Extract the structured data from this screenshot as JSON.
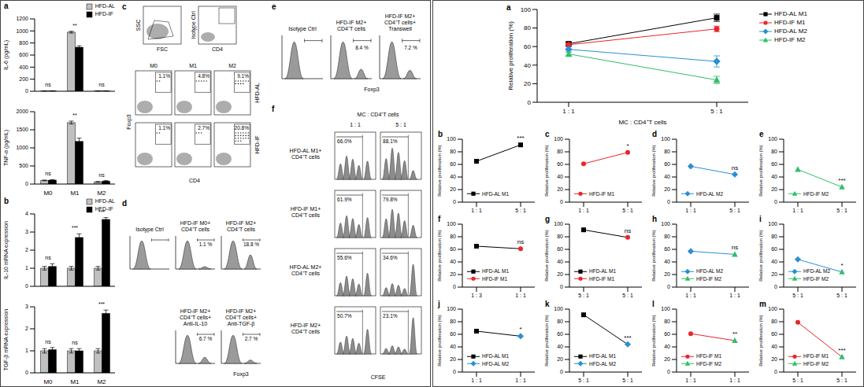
{
  "chart_data": [
    {
      "title": "a",
      "type": "bar",
      "ylabel": "IL-6 (pg/mL)",
      "categories": [
        "M0",
        "M1",
        "M2"
      ],
      "series": [
        {
          "name": "HFD-AL",
          "color": "#c0c0c0",
          "values": [
            5,
            980,
            5
          ],
          "errors": [
            2,
            15,
            2
          ]
        },
        {
          "name": "HFD-IF",
          "color": "#000000",
          "values": [
            5,
            730,
            5
          ],
          "errors": [
            2,
            25,
            2
          ]
        }
      ],
      "significance": [
        "ns",
        "**",
        "ns"
      ],
      "ylim": [
        0,
        1200
      ],
      "yticks": [
        0,
        200,
        400,
        600,
        800,
        1000,
        1200
      ],
      "legend": "top-right",
      "tick_labels": "y"
    },
    {
      "type": "bar",
      "ylabel": "TNF-α (pg/mL)",
      "categories": [
        "M0",
        "M1",
        "M2"
      ],
      "series": [
        {
          "name": "HFD-AL",
          "color": "#c0c0c0",
          "values": [
            100,
            1700,
            60
          ],
          "errors": [
            10,
            40,
            10
          ]
        },
        {
          "name": "HFD-IF",
          "color": "#000000",
          "values": [
            110,
            1180,
            80
          ],
          "errors": [
            10,
            90,
            15
          ]
        }
      ],
      "significance": [
        "ns",
        "**",
        "ns"
      ],
      "ylim": [
        0,
        2000
      ],
      "yticks": [
        0,
        500,
        1000,
        1500,
        2000
      ],
      "legend": "none"
    },
    {
      "title": "b",
      "type": "bar",
      "ylabel": "IL-10 mRNA expression",
      "categories": [
        "M0",
        "M1",
        "M2"
      ],
      "series": [
        {
          "name": "HFD-AL",
          "color": "#c0c0c0",
          "values": [
            1,
            1,
            1
          ],
          "errors": [
            0.1,
            0.1,
            0.1
          ]
        },
        {
          "name": "HFD-IF",
          "color": "#000000",
          "values": [
            1.1,
            2.7,
            3.7
          ],
          "errors": [
            0.15,
            0.2,
            0.1
          ]
        }
      ],
      "significance": [
        "ns",
        "***",
        "***"
      ],
      "ylim": [
        0,
        4
      ],
      "yticks": [
        0,
        1,
        2,
        3,
        4
      ],
      "legend": "top-right",
      "tick_labels": "y"
    },
    {
      "type": "bar",
      "ylabel": "TGF-β mRNA expression",
      "categories": [
        "M0",
        "M1",
        "M2"
      ],
      "series": [
        {
          "name": "HFD-AL",
          "color": "#c0c0c0",
          "values": [
            1,
            1,
            1
          ],
          "errors": [
            0.1,
            0.1,
            0.1
          ]
        },
        {
          "name": "HFD-IF",
          "color": "#000000",
          "values": [
            1.05,
            1,
            2.7
          ],
          "errors": [
            0.1,
            0.1,
            0.15
          ]
        }
      ],
      "significance": [
        "ns",
        "ns",
        "***"
      ],
      "ylim": [
        0,
        3
      ],
      "yticks": [
        0,
        1,
        2,
        3
      ],
      "legend": "none"
    },
    {
      "title": "c",
      "type": "dot_plot",
      "x_label": "CD4",
      "y_label": "Foxp3",
      "gating": {
        "x_label": "FSC",
        "y_label": "SSC"
      },
      "isotype": {
        "label": "Isotype Ctrl",
        "x_label": "CD4"
      },
      "columns": [
        "M0",
        "M1",
        "M2"
      ],
      "rows": [
        {
          "name": "HFD-AL",
          "values": [
            1.1,
            4.8,
            9.1
          ],
          "value_labels": [
            "1.1%",
            "4.8%",
            "9.1%"
          ]
        },
        {
          "name": "HFD-IF",
          "values": [
            1.1,
            2.7,
            20.8
          ],
          "value_labels": [
            "1.1%",
            "2.7%",
            "20.8%"
          ]
        }
      ]
    },
    {
      "title": "d",
      "type": "histogram",
      "x_label": "Foxp3",
      "panels": [
        {
          "label": [
            "Isotype Ctrl"
          ]
        },
        {
          "label": [
            "HFD-IF M0+",
            "CD4⁺T cells"
          ],
          "value": 1.1,
          "value_label": "1.1 %"
        },
        {
          "label": [
            "HFD-IF M2+",
            "CD4⁺T cells"
          ],
          "value": 18.8,
          "value_label": "18.8 %"
        },
        {
          "label": [
            "HFD-IF M2+",
            "CD4⁺T cells+",
            "Anti-IL-10"
          ],
          "value": 6.7,
          "value_label": "6.7 %"
        },
        {
          "label": [
            "HFD-IF M2+",
            "CD4⁺T cells+",
            "Anti-TGF-β"
          ],
          "value": 2.7,
          "value_label": "2.7 %"
        }
      ]
    },
    {
      "title": "e",
      "type": "histogram",
      "x_label": "Foxp3",
      "panels": [
        {
          "label": [
            "Isotype Ctrl"
          ]
        },
        {
          "label": [
            "HFD-IF M2+",
            "CD4⁺T cells"
          ],
          "value": 8.4,
          "value_label": "8.4 %"
        },
        {
          "label": [
            "HFD-IF M2+",
            "CD4⁺T cells+",
            "Transwell"
          ],
          "value": 7.2,
          "value_label": "7.2 %"
        }
      ]
    },
    {
      "title": "f",
      "type": "histogram",
      "header": "MC : CD4⁺T cells",
      "columns": [
        "1 : 1",
        "5 : 1"
      ],
      "x_label": "CFSE",
      "rows": [
        {
          "label": [
            "HFD-AL M1+",
            "CD4⁺T cells"
          ],
          "values": [
            66.0,
            88.1
          ],
          "value_labels": [
            "66.0%",
            "88.1%"
          ]
        },
        {
          "label": [
            "HFD-IF M1+",
            "CD4⁺T cells"
          ],
          "values": [
            61.9,
            79.8
          ],
          "value_labels": [
            "61.9%",
            "79.8%"
          ]
        },
        {
          "label": [
            "HFD-AL M2+",
            "CD4⁺T cells"
          ],
          "values": [
            55.6,
            34.6
          ],
          "value_labels": [
            "55.6%",
            "34.6%"
          ]
        },
        {
          "label": [
            "HFD-IF M2+",
            "CD4⁺T cells"
          ],
          "values": [
            50.7,
            23.1
          ],
          "value_labels": [
            "50.7%",
            "23.1%"
          ]
        }
      ]
    },
    {
      "title": "a",
      "type": "line",
      "xlabel": "MC : CD4⁺T cells",
      "ylabel": "Relative proliferation (%)",
      "categories": [
        "1 : 1",
        "5 : 1"
      ],
      "series": [
        {
          "name": "HFD-AL M1",
          "color": "#000000",
          "marker": "square",
          "values": [
            63,
            91
          ],
          "errors": [
            2,
            4
          ]
        },
        {
          "name": "HFD-IF M1",
          "color": "#e8262b",
          "marker": "circle",
          "values": [
            62,
            79
          ],
          "errors": [
            2,
            3
          ]
        },
        {
          "name": "HFD-AL M2",
          "color": "#2a8fd4",
          "marker": "diamond",
          "values": [
            57,
            44
          ],
          "errors": [
            3,
            6
          ]
        },
        {
          "name": "HFD-IF M2",
          "color": "#2fbf6a",
          "marker": "triangle",
          "values": [
            52,
            24
          ],
          "errors": [
            2,
            4
          ]
        }
      ],
      "ylim": [
        0,
        100
      ],
      "yticks": [
        0,
        20,
        40,
        60,
        80,
        100
      ],
      "legend": "right"
    },
    {
      "title": "b",
      "type": "line",
      "ylabel": "Relative proliferation (%)",
      "categories": [
        "1 : 1",
        "5 : 1"
      ],
      "series": [
        {
          "name": "HFD-AL M1",
          "color": "#000000",
          "marker": "square",
          "values": [
            65,
            91
          ]
        }
      ],
      "significance": "***",
      "ylim": [
        0,
        100
      ],
      "yticks": [
        0,
        20,
        40,
        60,
        80,
        100
      ],
      "legend": "bottom-left"
    },
    {
      "title": "c",
      "type": "line",
      "ylabel": "Relative proliferation (%)",
      "categories": [
        "1 : 1",
        "5 : 1"
      ],
      "series": [
        {
          "name": "HFD-IF M1",
          "color": "#e8262b",
          "marker": "circle",
          "values": [
            61,
            79
          ]
        }
      ],
      "significance": "*",
      "ylim": [
        0,
        100
      ],
      "yticks": [
        0,
        20,
        40,
        60,
        80,
        100
      ],
      "legend": "bottom-left"
    },
    {
      "title": "d",
      "type": "line",
      "ylabel": "Relative proliferation (%)",
      "categories": [
        "1 : 1",
        "5 : 1"
      ],
      "series": [
        {
          "name": "HFD-AL M2",
          "color": "#2a8fd4",
          "marker": "diamond",
          "values": [
            57,
            44
          ]
        }
      ],
      "significance": "ns",
      "ylim": [
        0,
        100
      ],
      "yticks": [
        0,
        20,
        40,
        60,
        80,
        100
      ],
      "legend": "bottom-left"
    },
    {
      "title": "e",
      "type": "line",
      "ylabel": "Relative proliferation (%)",
      "categories": [
        "1 : 1",
        "5 : 1"
      ],
      "series": [
        {
          "name": "HFD-IF M2",
          "color": "#2fbf6a",
          "marker": "triangle",
          "values": [
            52,
            24
          ]
        }
      ],
      "significance": "***",
      "ylim": [
        0,
        100
      ],
      "yticks": [
        0,
        20,
        40,
        60,
        80,
        100
      ],
      "legend": "bottom-left"
    },
    {
      "title": "f",
      "type": "line",
      "ylabel": "Relative proliferation (%)",
      "categories": [
        "1 : 3",
        "1 : 1"
      ],
      "series": [
        {
          "name": "HFD-AL M1",
          "color": "#000000",
          "marker": "square",
          "values": [
            65,
            null
          ]
        },
        {
          "name": "HFD-IF M1",
          "color": "#e8262b",
          "marker": "circle",
          "values": [
            null,
            61
          ]
        }
      ],
      "significance": "ns",
      "ylim": [
        0,
        100
      ],
      "yticks": [
        0,
        20,
        40,
        60,
        80,
        100
      ],
      "legend": "bottom-left"
    },
    {
      "title": "g",
      "type": "line",
      "ylabel": "Relative proliferation (%)",
      "categories": [
        "5 : 1",
        "5 : 1"
      ],
      "series": [
        {
          "name": "HFD-AL M1",
          "color": "#000000",
          "marker": "square",
          "values": [
            91,
            null
          ]
        },
        {
          "name": "HFD-IF M1",
          "color": "#e8262b",
          "marker": "circle",
          "values": [
            null,
            79
          ]
        }
      ],
      "significance": "ns",
      "ylim": [
        0,
        100
      ],
      "yticks": [
        0,
        20,
        40,
        60,
        80,
        100
      ],
      "legend": "bottom-left"
    },
    {
      "title": "h",
      "type": "line",
      "ylabel": "Relative proliferation (%)",
      "categories": [
        "1 : 1",
        "1 : 1"
      ],
      "series": [
        {
          "name": "HFD-AL M2",
          "color": "#2a8fd4",
          "marker": "diamond",
          "values": [
            57,
            null
          ]
        },
        {
          "name": "HFD-IF M2",
          "color": "#2fbf6a",
          "marker": "triangle",
          "values": [
            null,
            52
          ]
        }
      ],
      "significance": "ns",
      "ylim": [
        0,
        100
      ],
      "yticks": [
        0,
        20,
        40,
        60,
        80,
        100
      ],
      "legend": "bottom-left"
    },
    {
      "title": "i",
      "type": "line",
      "ylabel": "Relative proliferation (%)",
      "categories": [
        "5 : 1",
        "5 : 1"
      ],
      "series": [
        {
          "name": "HFD-AL M2",
          "color": "#2a8fd4",
          "marker": "diamond",
          "values": [
            44,
            null
          ]
        },
        {
          "name": "HFD-IF M2",
          "color": "#2fbf6a",
          "marker": "triangle",
          "values": [
            null,
            24
          ]
        }
      ],
      "significance": "*",
      "ylim": [
        0,
        100
      ],
      "yticks": [
        0,
        20,
        40,
        60,
        80,
        100
      ],
      "legend": "bottom-left"
    },
    {
      "title": "j",
      "type": "line",
      "ylabel": "Relative proliferation (%)",
      "categories": [
        "1 : 1",
        "1 : 1"
      ],
      "series": [
        {
          "name": "HFD-AL M1",
          "color": "#000000",
          "marker": "square",
          "values": [
            65,
            null
          ]
        },
        {
          "name": "HFD-AL M2",
          "color": "#2a8fd4",
          "marker": "diamond",
          "values": [
            null,
            57
          ]
        }
      ],
      "significance": "*",
      "ylim": [
        0,
        100
      ],
      "yticks": [
        0,
        20,
        40,
        60,
        80,
        100
      ],
      "legend": "bottom-left"
    },
    {
      "title": "k",
      "type": "line",
      "ylabel": "Relative proliferation (%)",
      "categories": [
        "5 : 1",
        "5 : 1"
      ],
      "series": [
        {
          "name": "HFD-AL M1",
          "color": "#000000",
          "marker": "square",
          "values": [
            91,
            null
          ]
        },
        {
          "name": "HFD-AL M2",
          "color": "#2a8fd4",
          "marker": "diamond",
          "values": [
            null,
            44
          ]
        }
      ],
      "significance": "***",
      "ylim": [
        0,
        100
      ],
      "yticks": [
        0,
        20,
        40,
        60,
        80,
        100
      ],
      "legend": "bottom-left"
    },
    {
      "title": "l",
      "type": "line",
      "ylabel": "Relative proliferation (%)",
      "categories": [
        "1 : 1",
        "1 : 1"
      ],
      "series": [
        {
          "name": "HFD-IF M1",
          "color": "#e8262b",
          "marker": "circle",
          "values": [
            61,
            null
          ]
        },
        {
          "name": "HFD-IF M2",
          "color": "#2fbf6a",
          "marker": "triangle",
          "values": [
            null,
            50
          ]
        }
      ],
      "significance": "**",
      "ylim": [
        0,
        100
      ],
      "yticks": [
        0,
        20,
        40,
        60,
        80,
        100
      ],
      "legend": "bottom-left"
    },
    {
      "title": "m",
      "type": "line",
      "ylabel": "Relative proliferation (%)",
      "categories": [
        "5 : 1",
        "5 : 1"
      ],
      "series": [
        {
          "name": "HFD-IF M1",
          "color": "#e8262b",
          "marker": "circle",
          "values": [
            79,
            null
          ]
        },
        {
          "name": "HFD-IF M2",
          "color": "#2fbf6a",
          "marker": "triangle",
          "values": [
            null,
            24
          ]
        }
      ],
      "significance": "***",
      "ylim": [
        0,
        100
      ],
      "yticks": [
        0,
        20,
        40,
        60,
        80,
        100
      ],
      "legend": "bottom-left"
    }
  ]
}
